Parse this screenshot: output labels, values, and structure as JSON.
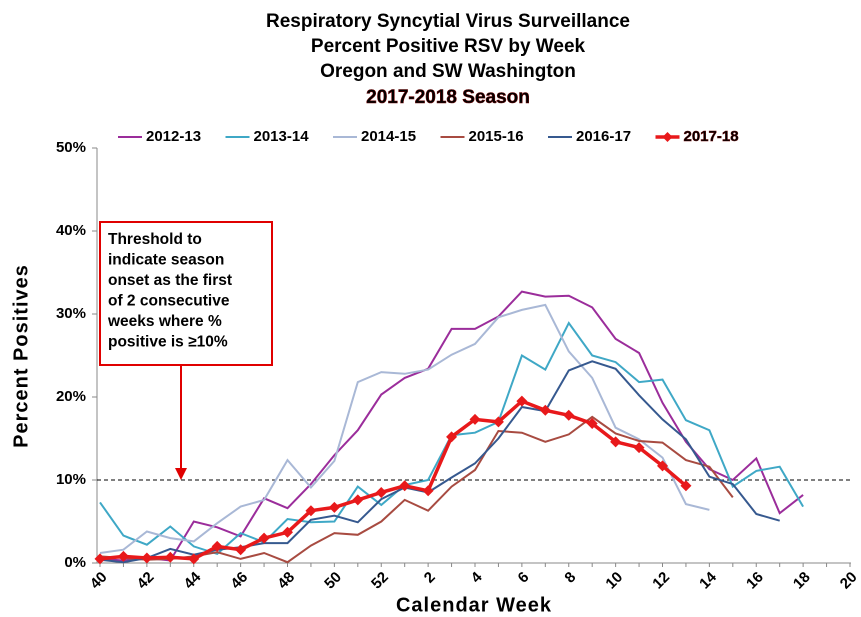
{
  "chart_data": {
    "type": "line",
    "title": [
      "Respiratory Syncytial Virus Surveillance",
      "Percent Positive RSV by Week",
      "Oregon and SW Washington"
    ],
    "subtitle": "2017-2018 Season",
    "subtitle_color": "#e00000",
    "x_label": "Calendar Week",
    "y_label": "Percent Positives",
    "categories": [
      "40",
      null,
      "42",
      null,
      "44",
      null,
      "46",
      null,
      "48",
      null,
      "50",
      null,
      "52",
      null,
      "2",
      null,
      "4",
      null,
      "6",
      null,
      "8",
      null,
      "10",
      null,
      "12",
      null,
      "14",
      null,
      "16",
      null,
      "18",
      null,
      "20"
    ],
    "ylim": [
      0,
      50
    ],
    "yticks": [
      {
        "value": 0,
        "label": "0%"
      },
      {
        "value": 10,
        "label": "10%"
      },
      {
        "value": 20,
        "label": "20%"
      },
      {
        "value": 30,
        "label": "30%"
      },
      {
        "value": 40,
        "label": "40%"
      },
      {
        "value": 50,
        "label": "50%"
      }
    ],
    "threshold": 10,
    "annotation": [
      "Threshold to",
      "indicate season",
      "onset  as the first",
      "of 2 consecutive",
      "weeks where %",
      "positive is ≥10%"
    ],
    "legend": "top",
    "series": [
      {
        "name": "2012-13",
        "color": "#9b2d9b",
        "values": [
          0.5,
          0.3,
          0.6,
          0.3,
          5.0,
          4.3,
          3.2,
          7.8,
          6.6,
          9.5,
          13.0,
          16.0,
          20.3,
          22.3,
          23.4,
          28.2,
          28.2,
          29.7,
          32.7,
          32.1,
          32.2,
          30.8,
          27.0,
          25.3,
          19.3,
          14.6,
          11.3,
          10.0,
          12.6,
          6.0,
          8.2,
          null,
          null
        ]
      },
      {
        "name": "2013-14",
        "color": "#3fa8c6",
        "values": [
          7.3,
          3.3,
          2.2,
          4.4,
          2.0,
          1.1,
          3.6,
          2.5,
          5.3,
          4.9,
          5.0,
          9.2,
          7.0,
          9.4,
          10.0,
          15.4,
          15.7,
          17.0,
          25.0,
          23.3,
          28.9,
          25.0,
          24.2,
          21.8,
          22.1,
          17.2,
          16.0,
          9.2,
          11.1,
          11.6,
          6.8,
          null,
          null
        ]
      },
      {
        "name": "2014-15",
        "color": "#a9b8d6",
        "values": [
          1.2,
          1.6,
          3.8,
          3.0,
          2.6,
          4.8,
          6.8,
          7.6,
          12.4,
          9.1,
          12.3,
          21.8,
          23.0,
          22.8,
          23.3,
          25.1,
          26.4,
          29.6,
          30.5,
          31.1,
          25.5,
          22.3,
          16.3,
          14.9,
          12.7,
          7.1,
          6.4,
          null,
          null,
          null,
          null,
          null,
          null
        ]
      },
      {
        "name": "2015-16",
        "color": "#a84b41",
        "values": [
          0.8,
          0.6,
          0.4,
          0.5,
          0.8,
          1.3,
          0.5,
          1.2,
          0.1,
          2.1,
          3.6,
          3.4,
          5.0,
          7.6,
          6.3,
          9.2,
          11.2,
          15.9,
          15.7,
          14.6,
          15.5,
          17.6,
          15.6,
          14.7,
          14.5,
          12.4,
          11.6,
          7.9,
          null,
          null,
          null,
          null,
          null
        ]
      },
      {
        "name": "2016-17",
        "color": "#36598f",
        "values": [
          0.4,
          0.1,
          0.6,
          1.7,
          1.0,
          1.6,
          1.9,
          2.4,
          2.4,
          5.2,
          5.7,
          4.9,
          7.7,
          9.1,
          8.5,
          10.3,
          12.0,
          15.0,
          18.8,
          18.3,
          23.2,
          24.3,
          23.4,
          20.2,
          17.3,
          14.9,
          10.4,
          9.5,
          5.9,
          5.1,
          null,
          null,
          null
        ]
      },
      {
        "name": "2017-18",
        "color": "#e8191b",
        "marker": "diamond",
        "values": [
          0.5,
          0.8,
          0.6,
          0.7,
          0.5,
          2.0,
          1.6,
          3.0,
          3.7,
          6.3,
          6.7,
          7.6,
          8.5,
          9.3,
          8.7,
          15.2,
          17.3,
          17.0,
          19.5,
          18.4,
          17.8,
          16.8,
          14.6,
          13.9,
          11.7,
          9.3,
          null,
          null,
          null,
          null,
          null,
          null,
          null
        ]
      }
    ]
  }
}
